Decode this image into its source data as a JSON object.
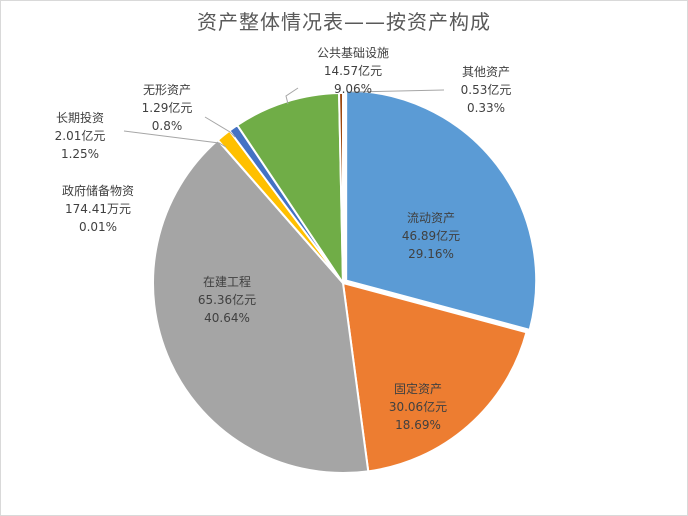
{
  "chart_data": {
    "type": "pie",
    "title": "资产整体情况表——按资产构成",
    "slices": [
      {
        "name": "流动资产",
        "amount": "46.89亿元",
        "percent_text": "29.16%",
        "value": 29.16,
        "color": "#5b9bd5"
      },
      {
        "name": "固定资产",
        "amount": "30.06亿元",
        "percent_text": "18.69%",
        "value": 18.69,
        "color": "#ed7d31"
      },
      {
        "name": "在建工程",
        "amount": "65.36亿元",
        "percent_text": "40.64%",
        "value": 40.64,
        "color": "#a5a5a5"
      },
      {
        "name": "政府储备物资",
        "amount": "174.41万元",
        "percent_text": "0.01%",
        "value": 0.01,
        "color": "#4472c4"
      },
      {
        "name": "长期投资",
        "amount": "2.01亿元",
        "percent_text": "1.25%",
        "value": 1.25,
        "color": "#ffc000"
      },
      {
        "name": "无形资产",
        "amount": "1.29亿元",
        "percent_text": "0.8%",
        "value": 0.8,
        "color": "#4472c4"
      },
      {
        "name": "公共基础设施",
        "amount": "14.57亿元",
        "percent_text": "9.06%",
        "value": 9.06,
        "color": "#70ad47"
      },
      {
        "name": "其他资产",
        "amount": "0.53亿元",
        "percent_text": "0.33%",
        "value": 0.33,
        "color": "#9e480e"
      }
    ]
  }
}
